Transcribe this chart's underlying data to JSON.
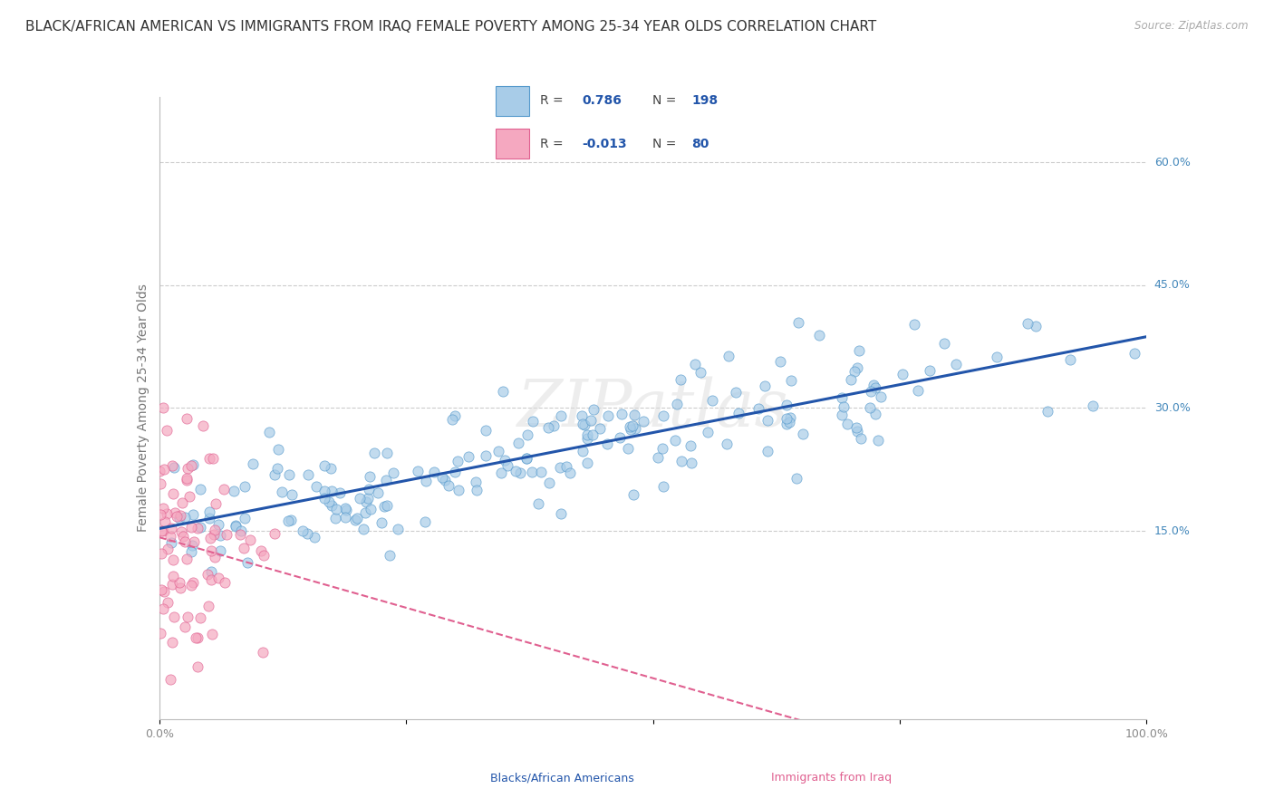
{
  "title": "BLACK/AFRICAN AMERICAN VS IMMIGRANTS FROM IRAQ FEMALE POVERTY AMONG 25-34 YEAR OLDS CORRELATION CHART",
  "source": "Source: ZipAtlas.com",
  "ylabel": "Female Poverty Among 25-34 Year Olds",
  "xlim": [
    0,
    1.0
  ],
  "ylim": [
    -0.08,
    0.68
  ],
  "yticks": [
    0.15,
    0.3,
    0.45,
    0.6
  ],
  "ytick_labels": [
    "15.0%",
    "30.0%",
    "45.0%",
    "60.0%"
  ],
  "xticks": [
    0.0,
    0.25,
    0.5,
    0.75,
    1.0
  ],
  "xtick_labels": [
    "0.0%",
    "",
    "",
    "",
    "100.0%"
  ],
  "blue_R": 0.786,
  "blue_N": 198,
  "pink_R": -0.013,
  "pink_N": 80,
  "blue_color": "#a8cce8",
  "pink_color": "#f5a8c0",
  "blue_edge_color": "#5599cc",
  "pink_edge_color": "#e06090",
  "blue_line_color": "#2255aa",
  "pink_line_color": "#e06090",
  "blue_label": "Blacks/African Americans",
  "pink_label": "Immigrants from Iraq",
  "watermark": "ZIPatlas",
  "background_color": "#ffffff",
  "grid_color": "#cccccc",
  "title_fontsize": 11,
  "axis_label_fontsize": 10,
  "tick_label_color": "#888888",
  "right_tick_color": "#4488bb",
  "seed": 7
}
